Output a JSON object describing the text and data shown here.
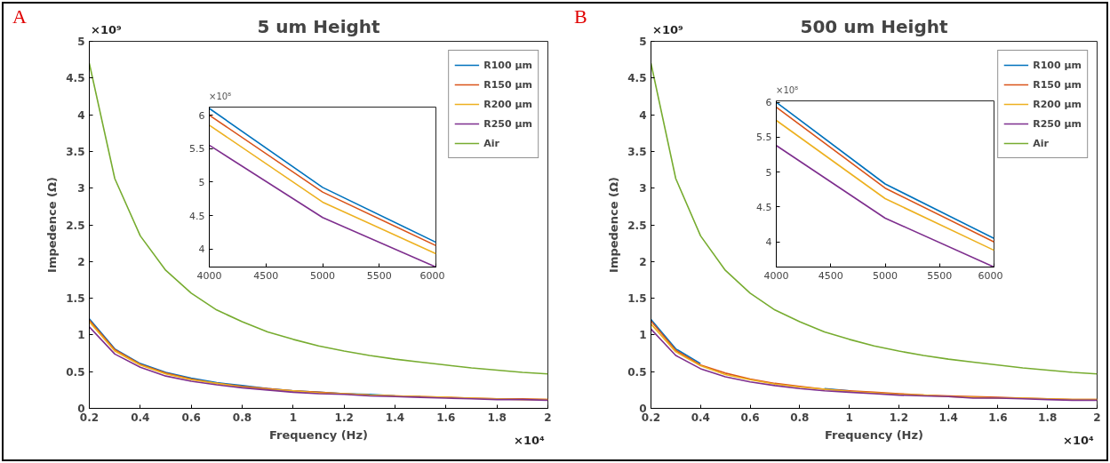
{
  "chart_data": [
    {
      "type": "line",
      "title": "5 um Height",
      "xlabel": "Frequency (Hz)",
      "ylabel": "Impedence (Ω)",
      "annotations": [
        "A",
        "×10⁹",
        "×10⁴"
      ],
      "x": [
        0.2,
        0.3,
        0.4,
        0.5,
        0.6,
        0.7,
        0.8,
        0.9,
        1.0,
        1.1,
        1.2,
        1.3,
        1.4,
        1.5,
        1.6,
        1.7,
        1.8,
        1.9,
        2.0
      ],
      "xlim": [
        0.2,
        2
      ],
      "xticks": [
        0.2,
        0.4,
        0.6,
        0.8,
        1,
        1.2,
        1.4,
        1.6,
        1.8,
        2
      ],
      "ylim": [
        0,
        5
      ],
      "yticks": [
        0,
        0.5,
        1,
        1.5,
        2,
        2.5,
        3,
        3.5,
        4,
        4.5,
        5
      ],
      "grid": false,
      "legend": "top right",
      "series": [
        {
          "name": "R100 μm",
          "color": "#0072bd",
          "values": [
            1.22,
            0.81,
            0.61,
            0.49,
            0.41,
            0.35,
            0.31,
            0.27,
            0.24,
            0.22,
            0.2,
            0.19,
            0.17,
            0.16,
            null,
            null,
            null,
            null,
            null
          ]
        },
        {
          "name": "R150 μm",
          "color": "#d95319",
          "values": [
            1.2,
            0.8,
            0.6,
            0.48,
            0.4,
            0.34,
            0.3,
            0.27,
            0.24,
            0.22,
            0.2,
            0.18,
            0.17,
            0.16,
            0.15,
            0.14,
            0.13,
            0.13,
            0.12
          ]
        },
        {
          "name": "R200 μm",
          "color": "#edb120",
          "values": [
            1.18,
            0.78,
            0.59,
            0.47,
            0.39,
            0.34,
            0.29,
            0.26,
            0.24,
            0.21,
            0.2,
            0.18,
            0.17,
            0.16,
            0.15,
            0.14,
            0.13,
            0.12,
            0.12
          ]
        },
        {
          "name": "R250 μm",
          "color": "#7e2f8e",
          "values": [
            1.11,
            0.74,
            0.56,
            0.44,
            0.37,
            0.32,
            0.28,
            0.25,
            0.22,
            0.2,
            0.19,
            0.17,
            0.16,
            0.15,
            0.14,
            0.13,
            0.12,
            0.12,
            0.11
          ]
        },
        {
          "name": "Air",
          "color": "#77ac30",
          "values": [
            4.7,
            3.13,
            2.35,
            1.88,
            1.57,
            1.34,
            1.18,
            1.04,
            0.94,
            0.85,
            0.78,
            0.72,
            0.67,
            0.63,
            0.59,
            0.55,
            0.52,
            0.49,
            0.47
          ]
        }
      ]
    },
    {
      "type": "line",
      "annotations": [
        "×10⁸"
      ],
      "x": [
        4000,
        5000,
        6000
      ],
      "xlim": [
        4000,
        6000
      ],
      "xticks": [
        4000,
        4500,
        5000,
        5500,
        6000
      ],
      "ylim": [
        3.73,
        6.12
      ],
      "yticks": [
        4,
        4.5,
        5,
        5.5,
        6
      ],
      "grid": false,
      "series": [
        {
          "color": "#0072bd",
          "values": [
            6.1,
            4.92,
            4.1
          ]
        },
        {
          "color": "#d95319",
          "values": [
            6.0,
            4.85,
            4.05
          ]
        },
        {
          "color": "#edb120",
          "values": [
            5.85,
            4.7,
            3.93
          ]
        },
        {
          "color": "#7e2f8e",
          "values": [
            5.55,
            4.47,
            3.73
          ]
        }
      ]
    },
    {
      "type": "line",
      "title": "500 um Height",
      "xlabel": "Frequency (Hz)",
      "ylabel": "Impedence (Ω)",
      "annotations": [
        "B",
        "×10⁹",
        "×10⁴"
      ],
      "x": [
        0.2,
        0.3,
        0.4,
        0.5,
        0.6,
        0.7,
        0.8,
        0.9,
        1.0,
        1.1,
        1.2,
        1.3,
        1.4,
        1.5,
        1.6,
        1.7,
        1.8,
        1.9,
        2.0
      ],
      "xlim": [
        0.2,
        2
      ],
      "xticks": [
        0.2,
        0.4,
        0.6,
        0.8,
        1,
        1.2,
        1.4,
        1.6,
        1.8,
        2
      ],
      "ylim": [
        0,
        5
      ],
      "yticks": [
        0,
        0.5,
        1,
        1.5,
        2,
        2.5,
        3,
        3.5,
        4,
        4.5,
        5
      ],
      "grid": false,
      "legend": "top right",
      "series": [
        {
          "name": "R100 μm",
          "color": "#0072bd",
          "values": [
            1.21,
            0.81,
            0.61,
            null,
            null,
            null,
            null,
            0.27,
            0.24,
            null,
            null,
            null,
            null,
            null,
            null,
            null,
            null,
            null,
            null
          ]
        },
        {
          "name": "R150 μm",
          "color": "#d95319",
          "values": [
            1.19,
            0.79,
            0.59,
            0.48,
            0.4,
            0.34,
            0.3,
            0.26,
            0.24,
            0.22,
            0.2,
            0.18,
            0.17,
            0.16,
            0.15,
            0.14,
            0.13,
            0.12,
            0.12
          ]
        },
        {
          "name": "R200 μm",
          "color": "#edb120",
          "values": [
            1.15,
            0.77,
            0.58,
            0.46,
            0.39,
            0.33,
            0.29,
            0.26,
            0.23,
            0.21,
            0.19,
            0.18,
            0.16,
            0.15,
            0.14,
            0.14,
            0.13,
            0.12,
            0.12
          ]
        },
        {
          "name": "R250 μm",
          "color": "#7e2f8e",
          "values": [
            1.08,
            0.72,
            0.54,
            0.43,
            0.36,
            0.31,
            0.27,
            0.24,
            0.22,
            0.2,
            0.18,
            0.17,
            0.16,
            0.14,
            0.14,
            0.13,
            0.12,
            0.11,
            0.11
          ]
        },
        {
          "name": "Air",
          "color": "#77ac30",
          "values": [
            4.7,
            3.13,
            2.35,
            1.88,
            1.57,
            1.34,
            1.18,
            1.04,
            0.94,
            0.85,
            0.78,
            0.72,
            0.67,
            0.63,
            0.59,
            0.55,
            0.52,
            0.49,
            0.47
          ]
        }
      ]
    },
    {
      "type": "line",
      "annotations": [
        "×10⁸"
      ],
      "x": [
        4000,
        5000,
        6000
      ],
      "xlim": [
        4000,
        6000
      ],
      "xticks": [
        4000,
        4500,
        5000,
        5500,
        6000
      ],
      "ylim": [
        3.64,
        6.02
      ],
      "yticks": [
        4,
        4.5,
        5,
        5.5,
        6
      ],
      "grid": false,
      "series": [
        {
          "color": "#0072bd",
          "values": [
            6.0,
            4.83,
            4.05
          ]
        },
        {
          "color": "#d95319",
          "values": [
            5.93,
            4.77,
            4.0
          ]
        },
        {
          "color": "#edb120",
          "values": [
            5.74,
            4.62,
            3.88
          ]
        },
        {
          "color": "#7e2f8e",
          "values": [
            5.38,
            4.34,
            3.64
          ]
        }
      ]
    }
  ]
}
